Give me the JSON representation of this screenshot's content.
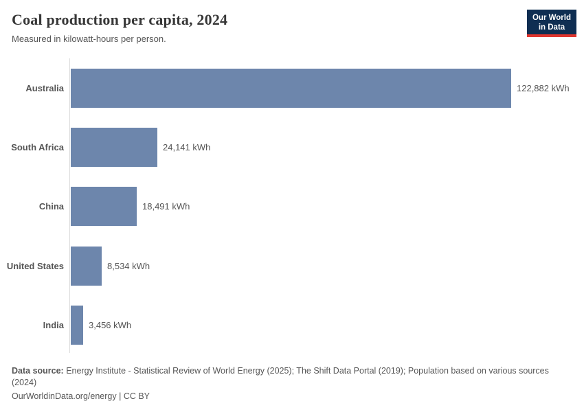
{
  "header": {
    "title": "Coal production per capita, 2024",
    "subtitle": "Measured in kilowatt-hours per person.",
    "logo": {
      "line1": "Our World",
      "line2": "in Data"
    }
  },
  "chart_data": {
    "type": "bar",
    "orientation": "horizontal",
    "title": "Coal production per capita, 2024",
    "subtitle": "Measured in kilowatt-hours per person.",
    "categories": [
      "Australia",
      "South Africa",
      "China",
      "United States",
      "India"
    ],
    "values": [
      122882,
      24141,
      18491,
      8534,
      3456
    ],
    "value_labels": [
      "122,882 kWh",
      "24,141 kWh",
      "18,491 kWh",
      "8,534 kWh",
      "3,456 kWh"
    ],
    "unit": "kWh",
    "xlim": [
      0,
      122882
    ],
    "grid": false,
    "legend": "none",
    "bar_color": "#6d86ac",
    "axis_color": "#dcdcdc",
    "label_color": "#555555"
  },
  "footer": {
    "source_label": "Data source:",
    "source_text": " Energy Institute - Statistical Review of World Energy (2025); The Shift Data Portal (2019); Population based on various sources (2024)",
    "link_text": "OurWorldinData.org/energy",
    "license_text": " | CC BY"
  },
  "colors": {
    "bar": "#6d86ac",
    "logo_navy": "#0f2e52",
    "logo_red": "#e0362f",
    "title": "#373737",
    "text_gray": "#555555",
    "axis": "#dcdcdc"
  }
}
